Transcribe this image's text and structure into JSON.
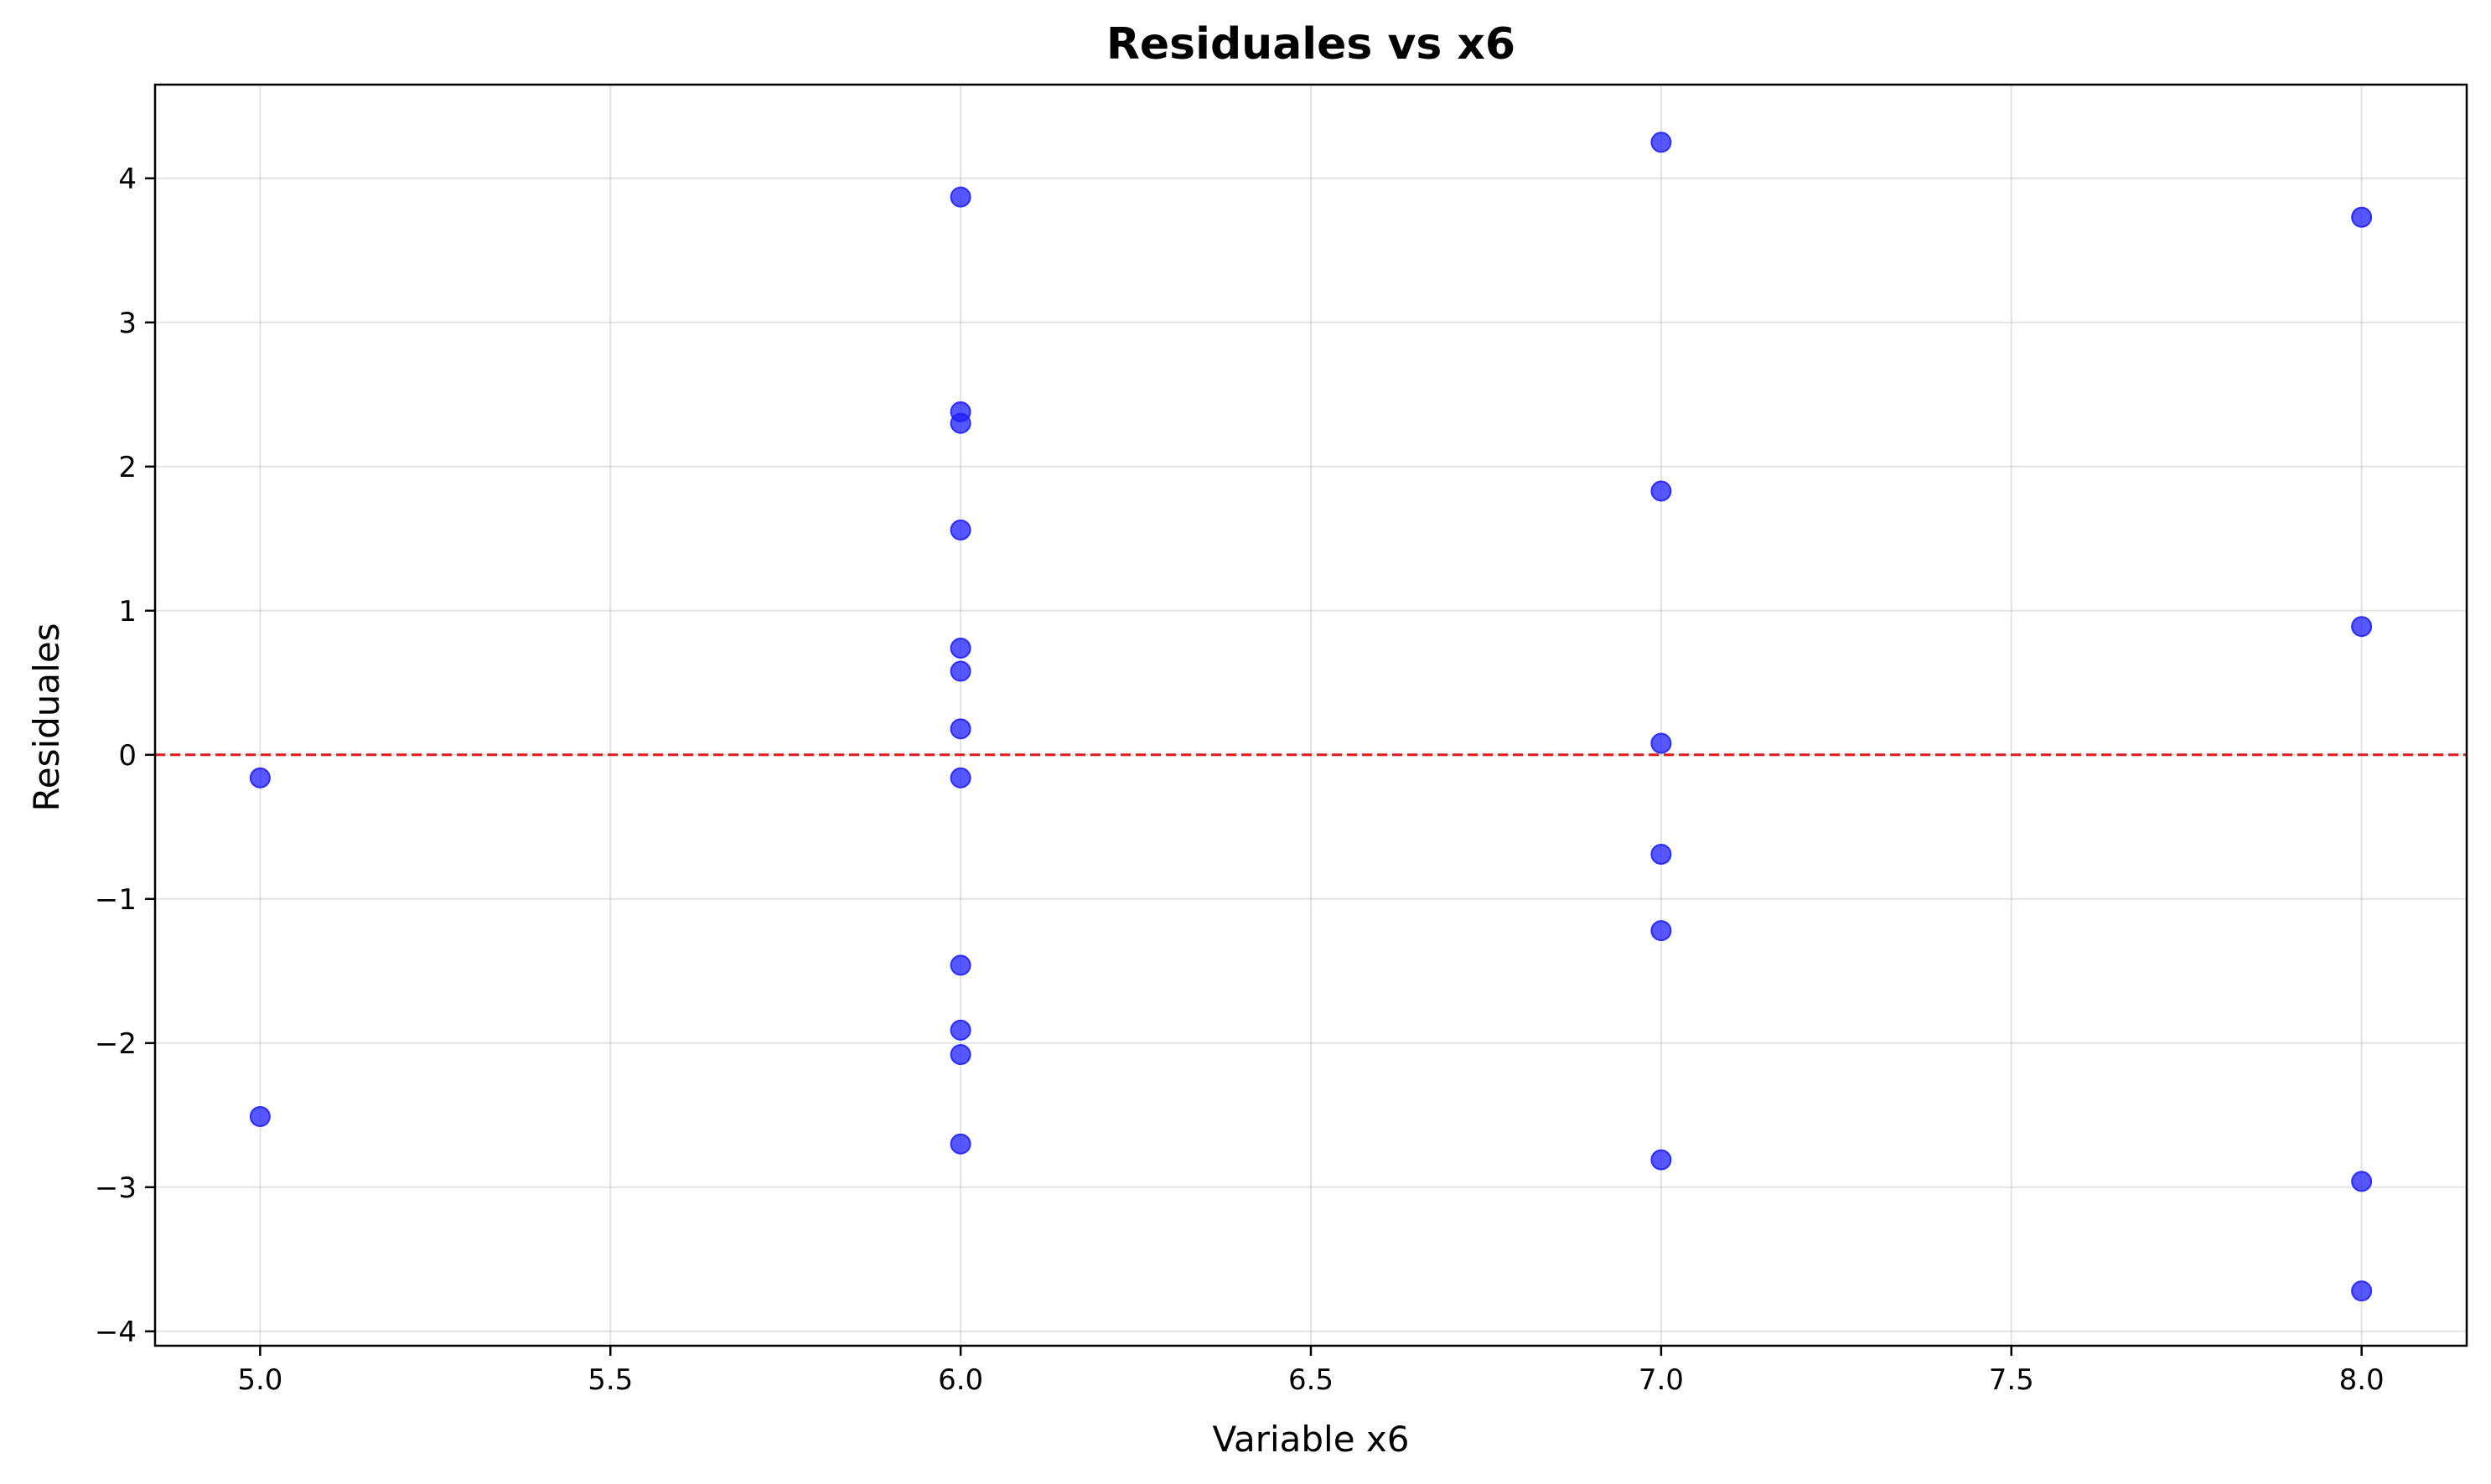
{
  "chart_data": {
    "type": "scatter",
    "title": "Residuales vs x6",
    "xlabel": "Variable x6",
    "ylabel": "Residuales",
    "xlim": [
      4.85,
      8.15
    ],
    "ylim": [
      -4.1,
      4.65
    ],
    "xticks": [
      5.0,
      5.5,
      6.0,
      6.5,
      7.0,
      7.5,
      8.0
    ],
    "xtick_labels": [
      "5.0",
      "5.5",
      "6.0",
      "6.5",
      "7.0",
      "7.5",
      "8.0"
    ],
    "yticks": [
      -4,
      -3,
      -2,
      -1,
      0,
      1,
      2,
      3,
      4
    ],
    "ytick_labels": [
      "−4",
      "−3",
      "−2",
      "−1",
      "0",
      "1",
      "2",
      "3",
      "4"
    ],
    "grid": true,
    "reference_line": {
      "y": 0,
      "style": "dashed",
      "color": "#e31a1c"
    },
    "marker_color": "#1f1fff",
    "points": [
      {
        "x": 5,
        "y": -0.16
      },
      {
        "x": 5,
        "y": -2.51
      },
      {
        "x": 6,
        "y": 3.87
      },
      {
        "x": 6,
        "y": 2.38
      },
      {
        "x": 6,
        "y": 2.3
      },
      {
        "x": 6,
        "y": 1.56
      },
      {
        "x": 6,
        "y": 0.74
      },
      {
        "x": 6,
        "y": 0.58
      },
      {
        "x": 6,
        "y": 0.18
      },
      {
        "x": 6,
        "y": -0.16
      },
      {
        "x": 6,
        "y": -1.46
      },
      {
        "x": 6,
        "y": -1.91
      },
      {
        "x": 6,
        "y": -2.08
      },
      {
        "x": 6,
        "y": -2.7
      },
      {
        "x": 7,
        "y": 4.25
      },
      {
        "x": 7,
        "y": 1.83
      },
      {
        "x": 7,
        "y": 0.08
      },
      {
        "x": 7,
        "y": -0.69
      },
      {
        "x": 7,
        "y": -1.22
      },
      {
        "x": 7,
        "y": -2.81
      },
      {
        "x": 8,
        "y": 3.73
      },
      {
        "x": 8,
        "y": 0.89
      },
      {
        "x": 8,
        "y": -2.96
      },
      {
        "x": 8,
        "y": -3.72
      }
    ]
  }
}
